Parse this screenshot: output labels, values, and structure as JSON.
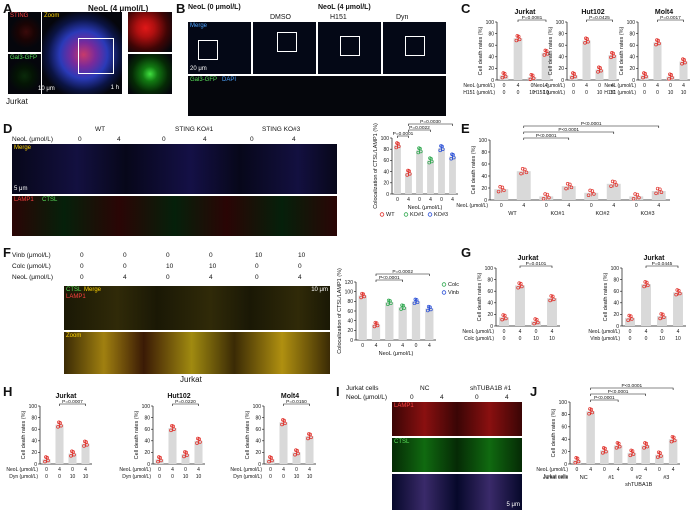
{
  "panels": {
    "A": {
      "label": "A",
      "title": "NeoL (4 μmol/L)",
      "ch_sting": "STING",
      "ch_zoom": "Zoom",
      "ch_gal3": "Gal3-GFP",
      "scale": "10 μm",
      "time": "1 h",
      "cell": "Jurkat"
    },
    "B": {
      "label": "B",
      "header_left": "NeoL (0 μmol/L)",
      "header_right": "NeoL (4 μmol/L)",
      "col_dmso": "DMSO",
      "col_h151": "H151",
      "col_dyn": "Dyn",
      "ch_merge": "Merge",
      "ch_gal3": "Gal3-GFP",
      "ch_dapi": "DAPI",
      "scale": "20 μm"
    },
    "D": {
      "label": "D",
      "neol_label": "NeoL (μmol/L)",
      "groups": [
        "WT",
        "STING KO#1",
        "STING KO#3"
      ],
      "doses": [
        "0",
        "4",
        "0",
        "4",
        "0",
        "4"
      ],
      "ch_merge": "Merge",
      "ch_lamp1": "LAMP1",
      "ch_ctsl": "CTSL",
      "scale": "5 μm"
    },
    "F": {
      "label": "F",
      "rows": [
        {
          "name": "Vinb (μmol/L)",
          "vals": [
            "0",
            "0",
            "0",
            "0",
            "10",
            "10"
          ]
        },
        {
          "name": "Colc (μmol/L)",
          "vals": [
            "0",
            "0",
            "10",
            "10",
            "0",
            "0"
          ]
        },
        {
          "name": "NeoL (μmol/L)",
          "vals": [
            "0",
            "4",
            "0",
            "4",
            "0",
            "4"
          ]
        }
      ],
      "ch_merge": "Merge",
      "ch_ctsl": "CTSL",
      "ch_lamp1": "LAMP1",
      "ch_zoom": "Zoom",
      "scale": "10 μm",
      "cell": "Jurkat"
    },
    "I": {
      "label": "I",
      "title_cells": "Jurkat cells",
      "col_nc": "NC",
      "col_sh": "shTUBA1B #1",
      "neol_label": "NeoL (μmol/L)",
      "doses": [
        "0",
        "4",
        "0",
        "4"
      ],
      "ch_lamp1": "LAMP1",
      "ch_ctsl": "CTSL",
      "scale": "5 μm"
    }
  },
  "chart_data": [
    {
      "id": "C1",
      "panel": "C",
      "type": "bar",
      "title": "Jurkat",
      "ylabel": "Cell death rates (%)",
      "ylim": [
        0,
        100
      ],
      "yticks": [
        0,
        20,
        40,
        60,
        80,
        100
      ],
      "rows": [
        {
          "name": "NeoL (μmol/L)",
          "vals": [
            "0",
            "4",
            "0",
            "4"
          ]
        },
        {
          "name": "H151 (μmol/L)",
          "vals": [
            "0",
            "0",
            "10",
            "10"
          ]
        }
      ],
      "values": [
        8,
        72,
        5,
        47
      ],
      "pvalues": [
        {
          "from": 1,
          "to": 3,
          "text": "P=0.0081"
        }
      ]
    },
    {
      "id": "C2",
      "panel": "C",
      "type": "bar",
      "title": "Hut102",
      "ylabel": "Cell death rates (%)",
      "ylim": [
        0,
        100
      ],
      "yticks": [
        0,
        20,
        40,
        60,
        80,
        100
      ],
      "rows": [
        {
          "name": "NeoL (μmol/L)",
          "vals": [
            "0",
            "4",
            "0",
            "4"
          ]
        },
        {
          "name": "H151 (μmol/L)",
          "vals": [
            "0",
            "0",
            "10",
            "10"
          ]
        }
      ],
      "values": [
        8,
        68,
        18,
        43
      ],
      "pvalues": [
        {
          "from": 1,
          "to": 3,
          "text": "P=0.0425"
        }
      ]
    },
    {
      "id": "C3",
      "panel": "C",
      "type": "bar",
      "title": "Molt4",
      "ylabel": "Cell death rates (%)",
      "ylim": [
        0,
        100
      ],
      "yticks": [
        0,
        20,
        40,
        60,
        80,
        100
      ],
      "rows": [
        {
          "name": "NeoL (μmol/L)",
          "vals": [
            "0",
            "4",
            "0",
            "4"
          ]
        },
        {
          "name": "H151 (μmol/L)",
          "vals": [
            "0",
            "0",
            "10",
            "10"
          ]
        }
      ],
      "values": [
        8,
        65,
        6,
        32
      ],
      "pvalues": [
        {
          "from": 1,
          "to": 3,
          "text": "P=0.0017"
        }
      ]
    },
    {
      "id": "D",
      "panel": "D",
      "type": "bar",
      "title": "",
      "ylabel": "Colocalization of CTSL/LAMP1 (%)",
      "ylim": [
        0,
        100
      ],
      "yticks": [
        0,
        20,
        40,
        60,
        80,
        100
      ],
      "xlabel": "NeoL (μmol/L)",
      "rows": [
        {
          "name": "",
          "vals": [
            "0",
            "4",
            "0",
            "4",
            "0",
            "4"
          ]
        }
      ],
      "values": [
        87,
        38,
        78,
        60,
        82,
        67
      ],
      "series_of_bar": [
        0,
        0,
        1,
        1,
        2,
        2
      ],
      "legend": [
        "WT",
        "KO#1",
        "KO#3"
      ],
      "pvalues": [
        {
          "from": 0,
          "to": 1,
          "text": "P=0.0001"
        },
        {
          "from": 1,
          "to": 3,
          "text": "P=0.0022"
        },
        {
          "from": 1,
          "to": 5,
          "text": "P=0.0030"
        }
      ]
    },
    {
      "id": "E",
      "panel": "E",
      "type": "bar",
      "title": "",
      "ylabel": "Cell death rates (%)",
      "ylim": [
        0,
        100
      ],
      "yticks": [
        0,
        20,
        40,
        60,
        80,
        100
      ],
      "rows": [
        {
          "name": "NeoL (μmol/L)",
          "vals": [
            "0",
            "4",
            "0",
            "4",
            "0",
            "4",
            "0",
            "4"
          ]
        }
      ],
      "group_labels": [
        "WT",
        "KO#1",
        "KO#2",
        "KO#3"
      ],
      "values": [
        18,
        48,
        6,
        23,
        12,
        27,
        6,
        15
      ],
      "pvalues": [
        {
          "from": 1,
          "to": 3,
          "text": "P<0.0001"
        },
        {
          "from": 1,
          "to": 5,
          "text": "P<0.0001"
        },
        {
          "from": 1,
          "to": 7,
          "text": "P<0.0001"
        }
      ]
    },
    {
      "id": "F",
      "panel": "F",
      "type": "bar",
      "title": "",
      "ylabel": "Colocalization of CTSL/LAMP1 (%)",
      "ylim": [
        0,
        120
      ],
      "yticks": [
        0,
        20,
        40,
        60,
        80,
        100,
        120
      ],
      "xlabel": "NeoL (μmol/L)",
      "rows": [
        {
          "name": "",
          "vals": [
            "0",
            "4",
            "0",
            "4",
            "0",
            "4"
          ]
        }
      ],
      "values": [
        92,
        32,
        78,
        68,
        80,
        65
      ],
      "series_of_bar": [
        0,
        0,
        1,
        1,
        2,
        2
      ],
      "legend": [
        "Colc",
        "Vinb"
      ],
      "pvalues": [
        {
          "from": 1,
          "to": 3,
          "text": "P<0.0001"
        },
        {
          "from": 1,
          "to": 5,
          "text": "P=0.0002"
        }
      ]
    },
    {
      "id": "G1",
      "panel": "G",
      "type": "bar",
      "title": "Jurkat",
      "ylabel": "Cell death rates (%)",
      "ylim": [
        0,
        100
      ],
      "yticks": [
        0,
        20,
        40,
        60,
        80,
        100
      ],
      "rows": [
        {
          "name": "NeoL (μmol/L)",
          "vals": [
            "0",
            "4",
            "0",
            "4"
          ]
        },
        {
          "name": "Colc (μmol/L)",
          "vals": [
            "0",
            "0",
            "10",
            "10"
          ]
        }
      ],
      "values": [
        15,
        70,
        8,
        48
      ],
      "pvalues": [
        {
          "from": 1,
          "to": 3,
          "text": "P=0.0101"
        }
      ]
    },
    {
      "id": "G2",
      "panel": "G",
      "type": "bar",
      "title": "Jurkat",
      "ylabel": "Cell death rates (%)",
      "ylim": [
        0,
        100
      ],
      "yticks": [
        0,
        20,
        40,
        60,
        80,
        100
      ],
      "rows": [
        {
          "name": "NeoL (μmol/L)",
          "vals": [
            "0",
            "4",
            "0",
            "4"
          ]
        },
        {
          "name": "Vinb (μmol/L)",
          "vals": [
            "0",
            "0",
            "10",
            "10"
          ]
        }
      ],
      "values": [
        14,
        72,
        17,
        58
      ],
      "pvalues": [
        {
          "from": 1,
          "to": 3,
          "text": "P=0.0445"
        }
      ]
    },
    {
      "id": "H1",
      "panel": "H",
      "type": "bar",
      "title": "Jurkat",
      "ylabel": "Cell death rates (%)",
      "ylim": [
        0,
        100
      ],
      "yticks": [
        0,
        20,
        40,
        60,
        80,
        100
      ],
      "rows": [
        {
          "name": "NeoL (μmol/L)",
          "vals": [
            "0",
            "4",
            "0",
            "4"
          ]
        },
        {
          "name": "Dyn (μmol/L)",
          "vals": [
            "0",
            "0",
            "10",
            "10"
          ]
        }
      ],
      "values": [
        8,
        68,
        18,
        35
      ],
      "pvalues": [
        {
          "from": 1,
          "to": 3,
          "text": "P=0.0007"
        }
      ]
    },
    {
      "id": "H2",
      "panel": "H",
      "type": "bar",
      "title": "Hut102",
      "ylabel": "Cell death rates (%)",
      "ylim": [
        0,
        100
      ],
      "yticks": [
        0,
        20,
        40,
        60,
        80,
        100
      ],
      "rows": [
        {
          "name": "NeoL (μmol/L)",
          "vals": [
            "0",
            "4",
            "0",
            "4"
          ]
        },
        {
          "name": "Dyn (μmol/L)",
          "vals": [
            "0",
            "0",
            "10",
            "10"
          ]
        }
      ],
      "values": [
        8,
        62,
        17,
        40
      ],
      "pvalues": [
        {
          "from": 1,
          "to": 3,
          "text": "P=0.0220"
        }
      ]
    },
    {
      "id": "H3",
      "panel": "H",
      "type": "bar",
      "title": "Molt4",
      "ylabel": "Cell death rates (%)",
      "ylim": [
        0,
        100
      ],
      "yticks": [
        0,
        20,
        40,
        60,
        80,
        100
      ],
      "rows": [
        {
          "name": "NeoL (μmol/L)",
          "vals": [
            "0",
            "4",
            "0",
            "4"
          ]
        },
        {
          "name": "Dyn (μmol/L)",
          "vals": [
            "0",
            "0",
            "10",
            "10"
          ]
        }
      ],
      "values": [
        8,
        72,
        20,
        48
      ],
      "pvalues": [
        {
          "from": 1,
          "to": 3,
          "text": "P=0.0150"
        }
      ]
    },
    {
      "id": "J",
      "panel": "J",
      "type": "bar",
      "title": "",
      "ylabel": "Cell death rates (%)",
      "ylim": [
        0,
        100
      ],
      "yticks": [
        0,
        20,
        40,
        60,
        80,
        100
      ],
      "rows": [
        {
          "name": "NeoL (μmol/L)",
          "vals": [
            "0",
            "4",
            "0",
            "4",
            "0",
            "4",
            "0",
            "4"
          ]
        },
        {
          "name": "Jurkat cells",
          "vals": []
        }
      ],
      "group_labels": [
        "NC",
        "#1",
        "#2",
        "#3"
      ],
      "sublabel": "shTUBA1B",
      "values": [
        6,
        85,
        22,
        30,
        18,
        30,
        15,
        40
      ],
      "pvalues": [
        {
          "from": 1,
          "to": 3,
          "text": "P<0.0001"
        },
        {
          "from": 1,
          "to": 5,
          "text": "P<0.0001"
        },
        {
          "from": 1,
          "to": 7,
          "text": "P<0.0001"
        }
      ]
    }
  ],
  "colors": {
    "bar": "#d9d9d9",
    "point_red": "#e0302a",
    "point_green": "#2fa84f",
    "point_blue": "#2a4fd6"
  }
}
